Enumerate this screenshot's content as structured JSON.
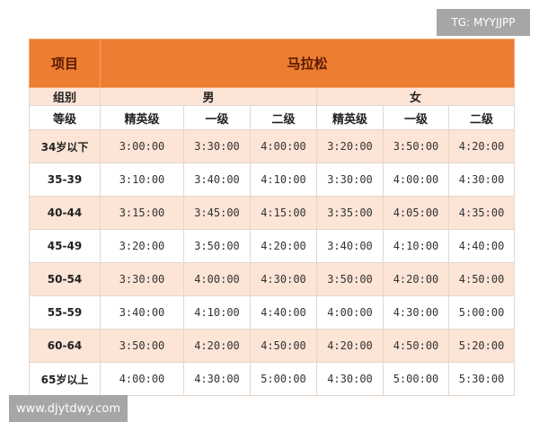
{
  "watermark_top": "TG: MYYJJPP",
  "watermark_bottom": "www.djytdwy.com",
  "table": {
    "header": {
      "item_label": "项目",
      "event": "马拉松"
    },
    "group_row": {
      "label": "组别",
      "male": "男",
      "female": "女"
    },
    "level_row": {
      "label": "等级",
      "levels": [
        "精英级",
        "一级",
        "二级",
        "精英级",
        "一级",
        "二级"
      ]
    },
    "rows": [
      {
        "age": "34岁以下",
        "times": [
          "3:00:00",
          "3:30:00",
          "4:00:00",
          "3:20:00",
          "3:50:00",
          "4:20:00"
        ]
      },
      {
        "age": "35-39",
        "times": [
          "3:10:00",
          "3:40:00",
          "4:10:00",
          "3:30:00",
          "4:00:00",
          "4:30:00"
        ]
      },
      {
        "age": "40-44",
        "times": [
          "3:15:00",
          "3:45:00",
          "4:15:00",
          "3:35:00",
          "4:05:00",
          "4:35:00"
        ]
      },
      {
        "age": "45-49",
        "times": [
          "3:20:00",
          "3:50:00",
          "4:20:00",
          "3:40:00",
          "4:10:00",
          "4:40:00"
        ]
      },
      {
        "age": "50-54",
        "times": [
          "3:30:00",
          "4:00:00",
          "4:30:00",
          "3:50:00",
          "4:20:00",
          "4:50:00"
        ]
      },
      {
        "age": "55-59",
        "times": [
          "3:40:00",
          "4:10:00",
          "4:40:00",
          "4:00:00",
          "4:30:00",
          "5:00:00"
        ]
      },
      {
        "age": "60-64",
        "times": [
          "3:50:00",
          "4:20:00",
          "4:50:00",
          "4:20:00",
          "4:50:00",
          "5:20:00"
        ]
      },
      {
        "age": "65岁以上",
        "times": [
          "4:00:00",
          "4:30:00",
          "5:00:00",
          "4:30:00",
          "5:00:00",
          "5:30:00"
        ]
      }
    ]
  },
  "colors": {
    "header": "#ed7d31",
    "stripe": "#fce4d6"
  }
}
